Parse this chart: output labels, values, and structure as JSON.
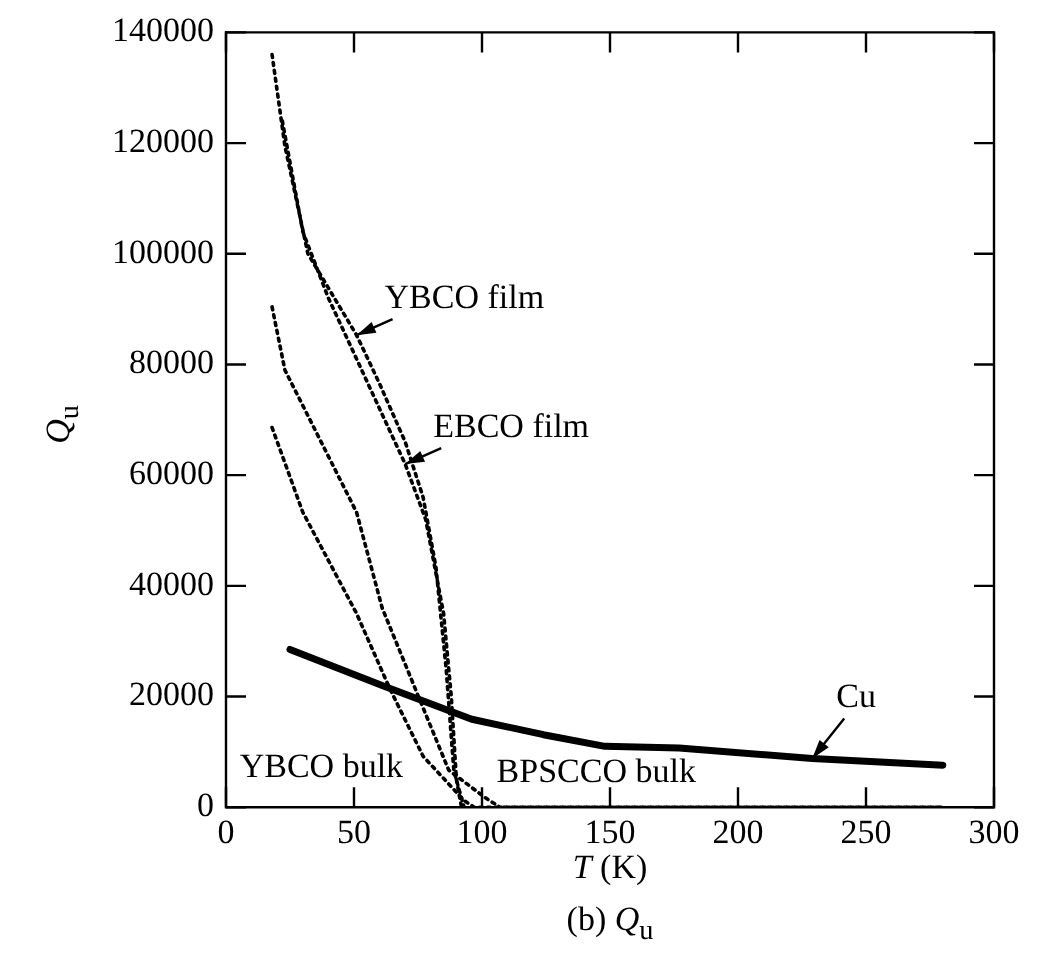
{
  "chart_data": {
    "type": "line",
    "xlabel": "T (K)",
    "ylabel": "Q$_{u}$",
    "annotations": [
      "(b) Q$_{u}$"
    ],
    "xlim": [
      0,
      300
    ],
    "xticks": [
      0,
      50,
      100,
      150,
      200,
      250,
      300
    ],
    "ylim": [
      0,
      140000
    ],
    "yticks": [
      0,
      20000,
      40000,
      60000,
      80000,
      100000,
      120000,
      140000
    ],
    "grid": false,
    "legend": false,
    "marker": "none",
    "series": [
      {
        "name": "YBCO film",
        "color": "#000000",
        "line_style": "dotted",
        "x": [
          18,
          23,
          32,
          51,
          60,
          70,
          77,
          82,
          86,
          89,
          93
        ],
        "values": [
          136000,
          119500,
          100000,
          85300,
          76500,
          66000,
          56000,
          43400,
          25000,
          6600,
          0
        ]
      },
      {
        "name": "EBCO film",
        "color": "#000000",
        "line_style": "dotted",
        "x": [
          22,
          30,
          40,
          50,
          60,
          70,
          78,
          85,
          88,
          90,
          92
        ],
        "values": [
          124000,
          104000,
          92000,
          82000,
          72000,
          62000,
          52000,
          35000,
          20000,
          5000,
          0
        ]
      },
      {
        "name": "BPSCCO bulk",
        "color": "#000000",
        "line_style": "dotted",
        "x": [
          18,
          23,
          51,
          61,
          75,
          87,
          101,
          107,
          150,
          200,
          280
        ],
        "values": [
          90400,
          79000,
          53300,
          36000,
          20200,
          6700,
          1800,
          0,
          0,
          0,
          0
        ]
      },
      {
        "name": "YBCO bulk",
        "color": "#000000",
        "line_style": "dotted",
        "x": [
          18,
          30,
          51,
          64,
          77,
          93,
          97,
          150,
          200,
          280
        ],
        "values": [
          68600,
          53300,
          35000,
          21400,
          9200,
          1200,
          0,
          0,
          0,
          0
        ]
      },
      {
        "name": "Cu",
        "color": "#000000",
        "line_style": "solid",
        "x": [
          25,
          61,
          96,
          124,
          148,
          177,
          229,
          280
        ],
        "values": [
          28500,
          22000,
          15900,
          13100,
          11000,
          10700,
          8800,
          7600
        ]
      }
    ]
  }
}
